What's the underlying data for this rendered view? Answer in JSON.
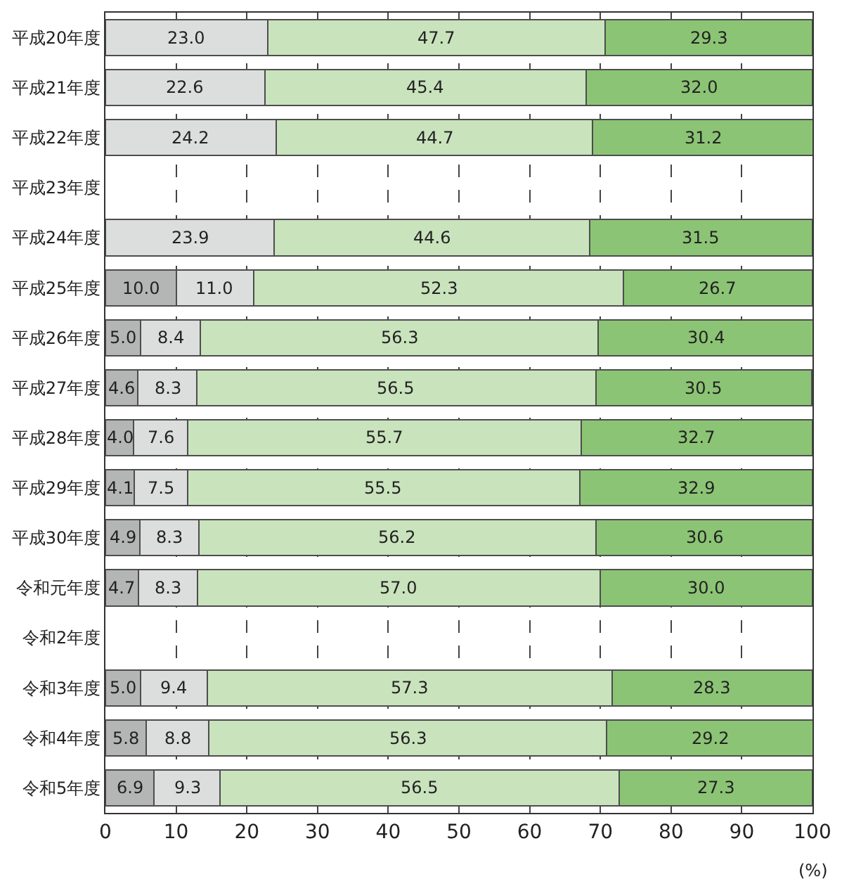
{
  "chart_data": {
    "type": "bar",
    "orientation": "horizontal",
    "stacked": true,
    "grid": "x",
    "categories": [
      "平成20年度",
      "平成21年度",
      "平成22年度",
      "平成23年度",
      "平成24年度",
      "平成25年度",
      "平成26年度",
      "平成27年度",
      "平成28年度",
      "平成29年度",
      "平成30年度",
      "令和元年度",
      "令和2年度",
      "令和3年度",
      "令和4年度",
      "令和5年度"
    ],
    "series": [
      {
        "color": "#b4b5b5",
        "values": [
          null,
          null,
          null,
          null,
          null,
          10.0,
          5.0,
          4.6,
          4.0,
          4.1,
          4.9,
          4.7,
          null,
          5.0,
          5.8,
          6.9
        ],
        "value_labels": [
          null,
          null,
          null,
          null,
          null,
          "10.0",
          "5.0",
          "4.6",
          "4.0",
          "4.1",
          "4.9",
          "4.7",
          null,
          "5.0",
          "5.8",
          "6.9"
        ]
      },
      {
        "color": "#dcdddd",
        "values": [
          23.0,
          22.6,
          24.2,
          null,
          23.9,
          11.0,
          8.4,
          8.3,
          7.6,
          7.5,
          8.3,
          8.3,
          null,
          9.4,
          8.8,
          9.3
        ],
        "value_labels": [
          "23.0",
          "22.6",
          "24.2",
          null,
          "23.9",
          "11.0",
          "8.4",
          "8.3",
          "7.6",
          "7.5",
          "8.3",
          "8.3",
          null,
          "9.4",
          "8.8",
          "9.3"
        ]
      },
      {
        "color": "#c9e3bd",
        "values": [
          47.7,
          45.4,
          44.7,
          null,
          44.6,
          52.3,
          56.3,
          56.5,
          55.7,
          55.5,
          56.2,
          57.0,
          null,
          57.3,
          56.3,
          56.5
        ],
        "value_labels": [
          "47.7",
          "45.4",
          "44.7",
          null,
          "44.6",
          "52.3",
          "56.3",
          "56.5",
          "55.7",
          "55.5",
          "56.2",
          "57.0",
          null,
          "57.3",
          "56.3",
          "56.5"
        ]
      },
      {
        "color": "#8cc475",
        "values": [
          29.3,
          32.0,
          31.2,
          null,
          31.5,
          26.7,
          30.4,
          30.5,
          32.7,
          32.9,
          30.6,
          30.0,
          null,
          28.3,
          29.2,
          27.3
        ],
        "value_labels": [
          "29.3",
          "32.0",
          "31.2",
          null,
          "31.5",
          "26.7",
          "30.4",
          "30.5",
          "32.7",
          "32.9",
          "30.6",
          "30.0",
          null,
          "28.3",
          "29.2",
          "27.3"
        ]
      }
    ],
    "xlim": [
      0,
      100
    ],
    "xticks": [
      0,
      10,
      20,
      30,
      40,
      50,
      60,
      70,
      80,
      90,
      100
    ],
    "annotations": [
      "(%)"
    ]
  }
}
